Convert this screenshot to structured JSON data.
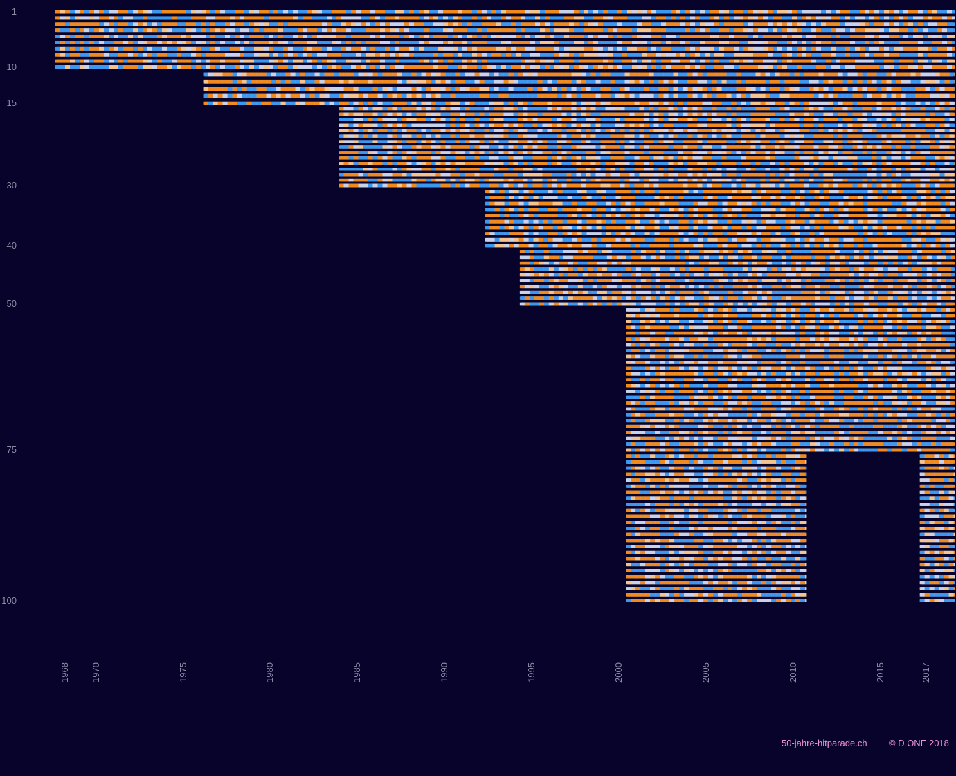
{
  "chart_data": {
    "type": "heatmap",
    "title": "",
    "xlabel": "",
    "ylabel": "",
    "x_range": [
      1968,
      2019.7
    ],
    "y_range": [
      1,
      100
    ],
    "x_ticks": [
      1968,
      1970,
      1975,
      1980,
      1985,
      1990,
      1995,
      2000,
      2005,
      2010,
      2015,
      2017
    ],
    "y_ticks": [
      1,
      10,
      15,
      30,
      40,
      50,
      75,
      100
    ],
    "grid": false,
    "legend": "none",
    "rank_segments": [
      {
        "ranks": [
          1,
          10
        ],
        "x_spans": [
          [
            1968.0,
            2019.7
          ]
        ]
      },
      {
        "ranks": [
          11,
          15
        ],
        "x_spans": [
          [
            1976.5,
            2019.7
          ]
        ]
      },
      {
        "ranks": [
          16,
          30
        ],
        "x_spans": [
          [
            1984.3,
            2019.7
          ]
        ]
      },
      {
        "ranks": [
          31,
          40
        ],
        "x_spans": [
          [
            1992.7,
            2019.7
          ]
        ]
      },
      {
        "ranks": [
          41,
          50
        ],
        "x_spans": [
          [
            1994.7,
            2019.7
          ]
        ]
      },
      {
        "ranks": [
          51,
          75
        ],
        "x_spans": [
          [
            2000.8,
            2019.7
          ]
        ]
      },
      {
        "ranks": [
          76,
          100
        ],
        "x_spans": [
          [
            2000.8,
            2011.2
          ],
          [
            2017.7,
            2019.7
          ]
        ]
      }
    ],
    "cell_colors": {
      "orange": "#f08a1c",
      "blue": "#3b98ee",
      "light": "#c9d2e8",
      "pale_orange": "#f4c48c"
    }
  },
  "colors": {
    "background": "#08032a",
    "axis_text": "#8c8aa6",
    "footer_text": "#ec8fd6",
    "rule": "#b9b7d0"
  },
  "footer": {
    "site": "50-jahre-hitparade.ch",
    "copyright": "© D ONE 2018"
  }
}
